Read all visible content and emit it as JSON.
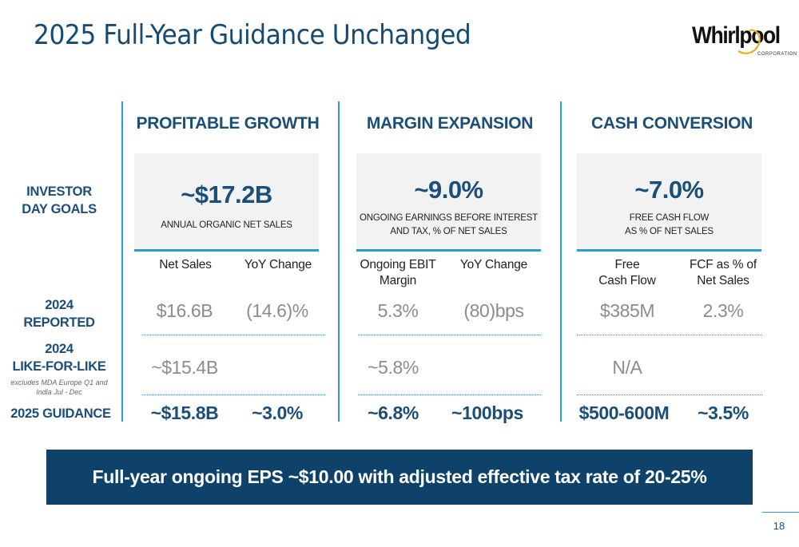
{
  "title": "2025 Full-Year Guidance Unchanged",
  "logo": {
    "brand": "Whirlpool",
    "tagline": "CORPORATION"
  },
  "row_labels": {
    "goals": [
      "INVESTOR",
      "DAY GOALS"
    ],
    "reported": [
      "2024",
      "REPORTED"
    ],
    "lfl": [
      "2024",
      "LIKE-FOR-LIKE"
    ],
    "lfl_note": [
      "excludes MDA Europe Q1 and",
      "India Jul - Dec"
    ],
    "guidance": "2025 GUIDANCE"
  },
  "sections": [
    {
      "heading": "PROFITABLE GROWTH",
      "goal_value": "~$17.2B",
      "goal_desc": [
        "ANNUAL ORGANIC NET SALES"
      ],
      "col_headers": [
        [
          "Net Sales"
        ],
        [
          "YoY Change"
        ]
      ],
      "reported": [
        "$16.6B",
        "(14.6)%"
      ],
      "lfl": [
        "~$15.4B",
        ""
      ],
      "guidance": [
        "~$15.8B",
        "~3.0%"
      ]
    },
    {
      "heading": "MARGIN EXPANSION",
      "goal_value": "~9.0%",
      "goal_desc": [
        "ONGOING EARNINGS BEFORE INTEREST",
        "AND TAX, % OF NET SALES"
      ],
      "col_headers": [
        [
          "Ongoing EBIT",
          "Margin"
        ],
        [
          "YoY Change"
        ]
      ],
      "reported": [
        "5.3%",
        "(80)bps"
      ],
      "lfl": [
        "~5.8%",
        ""
      ],
      "guidance": [
        "~6.8%",
        "~100bps"
      ]
    },
    {
      "heading": "CASH CONVERSION",
      "goal_value": "~7.0%",
      "goal_desc": [
        "FREE CASH FLOW",
        "AS % OF NET SALES"
      ],
      "col_headers": [
        [
          "Free",
          "Cash Flow"
        ],
        [
          "FCF as % of",
          "Net Sales"
        ]
      ],
      "reported": [
        "$385M",
        "2.3%"
      ],
      "lfl": [
        "N/A",
        ""
      ],
      "guidance": [
        "$500-600M",
        "~3.5%"
      ]
    }
  ],
  "banner": "Full-year ongoing EPS ~$10.00 with adjusted effective tax rate of 20-25%",
  "page_number": "18",
  "colors": {
    "navy": "#1b4e78",
    "accent": "#2a9bd8",
    "banner": "#0f426a",
    "gray_value": "#8c8c8c"
  }
}
